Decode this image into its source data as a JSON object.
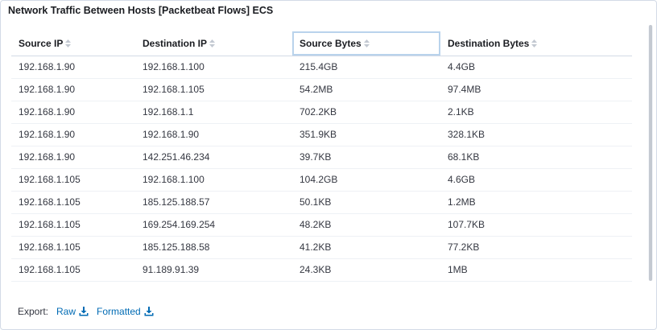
{
  "panel": {
    "title": "Network Traffic Between Hosts [Packetbeat Flows] ECS"
  },
  "table": {
    "columns": [
      {
        "label": "Source IP"
      },
      {
        "label": "Destination IP"
      },
      {
        "label": "Source Bytes"
      },
      {
        "label": "Destination Bytes"
      }
    ],
    "rows": [
      [
        "192.168.1.90",
        "192.168.1.100",
        "215.4GB",
        "4.4GB"
      ],
      [
        "192.168.1.90",
        "192.168.1.105",
        "54.2MB",
        "97.4MB"
      ],
      [
        "192.168.1.90",
        "192.168.1.1",
        "702.2KB",
        "2.1KB"
      ],
      [
        "192.168.1.90",
        "192.168.1.90",
        "351.9KB",
        "328.1KB"
      ],
      [
        "192.168.1.90",
        "142.251.46.234",
        "39.7KB",
        "68.1KB"
      ],
      [
        "192.168.1.105",
        "192.168.1.100",
        "104.2GB",
        "4.6GB"
      ],
      [
        "192.168.1.105",
        "185.125.188.57",
        "50.1KB",
        "1.2MB"
      ],
      [
        "192.168.1.105",
        "169.254.169.254",
        "48.2KB",
        "107.7KB"
      ],
      [
        "192.168.1.105",
        "185.125.188.58",
        "41.2KB",
        "77.2KB"
      ],
      [
        "192.168.1.105",
        "91.189.91.39",
        "24.3KB",
        "1MB"
      ]
    ]
  },
  "export": {
    "label": "Export:",
    "raw_label": "Raw",
    "formatted_label": "Formatted"
  },
  "icons": {
    "sort": "sort-icon",
    "download": "download-icon"
  },
  "colors": {
    "link": "#006bb4",
    "active_header_outline": "#b9d3ec"
  }
}
